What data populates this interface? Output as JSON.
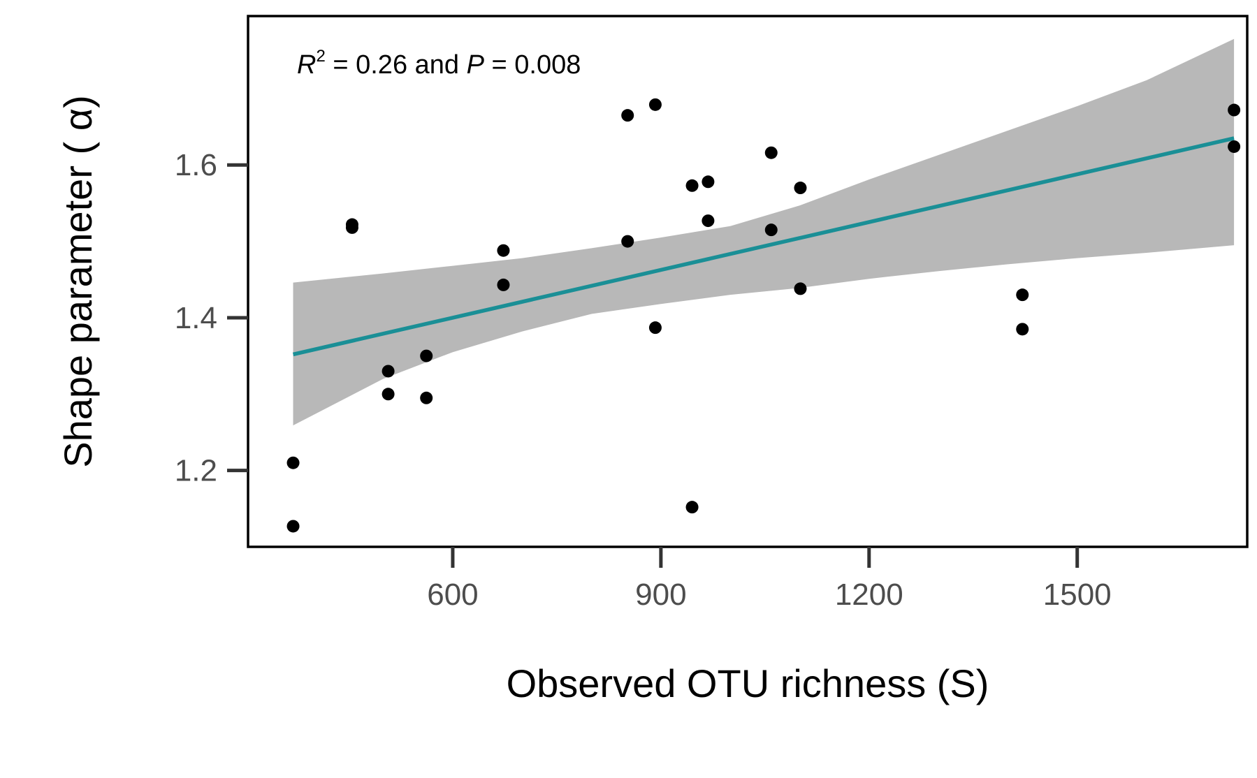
{
  "chart_data": {
    "type": "scatter",
    "title": "",
    "xlabel": "Observed OTU richness (S)",
    "ylabel": "Shape parameter ( α)",
    "xlim": [
      305,
      1745
    ],
    "ylim": [
      1.1,
      1.795
    ],
    "x_ticks": [
      600,
      900,
      1200,
      1500
    ],
    "y_ticks": [
      1.2,
      1.4,
      1.6
    ],
    "x_tick_labels": [
      "600",
      "900",
      "1200",
      "1500"
    ],
    "y_tick_labels": [
      "1.2",
      "1.4",
      "1.6"
    ],
    "grid": false,
    "annotation": {
      "r_symbol": "R",
      "r_exponent": "2",
      "r_value_text": " = 0.26 and ",
      "p_symbol": "P",
      "p_value_text": " = 0.008"
    },
    "series": [
      {
        "name": "observations",
        "type": "scatter",
        "color": "#000000",
        "points": [
          {
            "x": 370,
            "y": 1.21
          },
          {
            "x": 370,
            "y": 1.127
          },
          {
            "x": 455,
            "y": 1.522
          },
          {
            "x": 455,
            "y": 1.518
          },
          {
            "x": 507,
            "y": 1.33
          },
          {
            "x": 507,
            "y": 1.3
          },
          {
            "x": 562,
            "y": 1.35
          },
          {
            "x": 562,
            "y": 1.295
          },
          {
            "x": 673,
            "y": 1.488
          },
          {
            "x": 673,
            "y": 1.443
          },
          {
            "x": 852,
            "y": 1.665
          },
          {
            "x": 852,
            "y": 1.5
          },
          {
            "x": 892,
            "y": 1.679
          },
          {
            "x": 892,
            "y": 1.387
          },
          {
            "x": 945,
            "y": 1.573
          },
          {
            "x": 945,
            "y": 1.152
          },
          {
            "x": 968,
            "y": 1.578
          },
          {
            "x": 968,
            "y": 1.527
          },
          {
            "x": 1059,
            "y": 1.616
          },
          {
            "x": 1059,
            "y": 1.515
          },
          {
            "x": 1101,
            "y": 1.57
          },
          {
            "x": 1101,
            "y": 1.438
          },
          {
            "x": 1421,
            "y": 1.43
          },
          {
            "x": 1421,
            "y": 1.385
          },
          {
            "x": 1726,
            "y": 1.672
          },
          {
            "x": 1726,
            "y": 1.624
          }
        ]
      },
      {
        "name": "linear fit",
        "type": "line",
        "color": "#1a8f96",
        "points": [
          {
            "x": 370,
            "y": 1.352
          },
          {
            "x": 1726,
            "y": 1.635
          }
        ]
      },
      {
        "name": "95% confidence band",
        "type": "area",
        "color": "#b8b8b8",
        "x": [
          370,
          500,
          600,
          700,
          800,
          900,
          1000,
          1100,
          1200,
          1300,
          1400,
          1500,
          1600,
          1726
        ],
        "lower": [
          1.259,
          1.32,
          1.355,
          1.382,
          1.405,
          1.418,
          1.43,
          1.439,
          1.451,
          1.461,
          1.47,
          1.478,
          1.485,
          1.495
        ],
        "upper": [
          1.446,
          1.458,
          1.468,
          1.478,
          1.491,
          1.505,
          1.52,
          1.547,
          1.581,
          1.613,
          1.645,
          1.677,
          1.711,
          1.765
        ]
      }
    ]
  }
}
